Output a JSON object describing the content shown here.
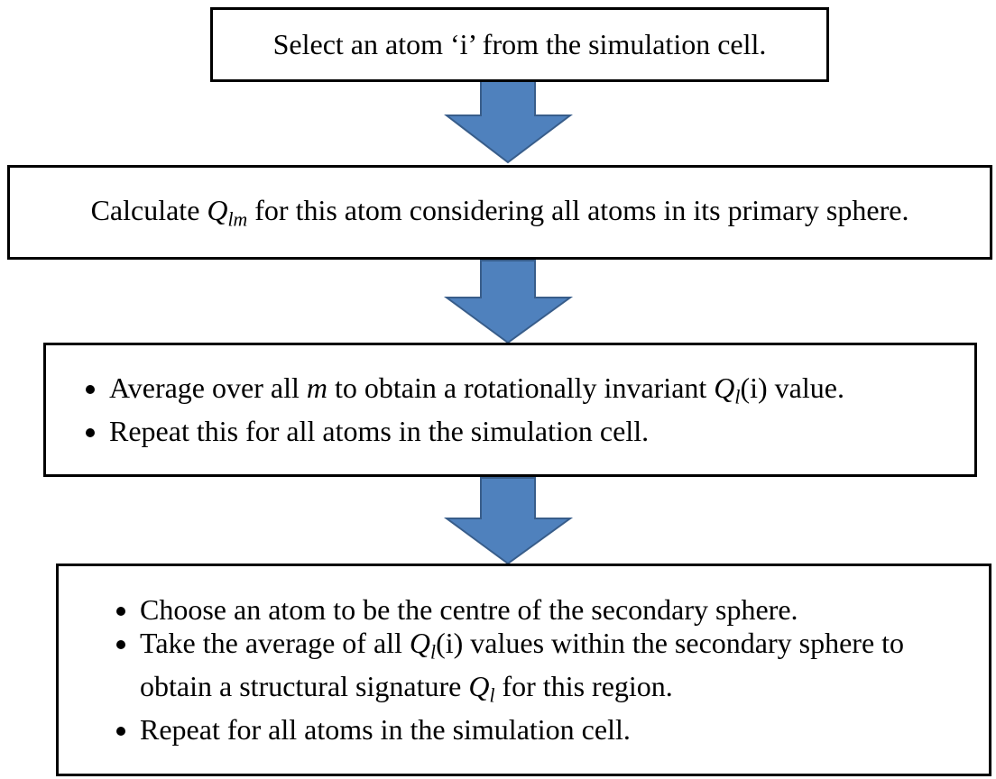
{
  "nodes": [
    {
      "bulleted": false,
      "items": [
        [
          {
            "text": "Select an atom ‘i’ from the simulation cell."
          }
        ]
      ]
    },
    {
      "bulleted": false,
      "items": [
        [
          {
            "text": "Calculate "
          },
          {
            "text": "Q",
            "style": "italic"
          },
          {
            "text": "lm",
            "style": "italic-sub"
          },
          {
            "text": " for this atom considering all atoms in its primary sphere."
          }
        ]
      ]
    },
    {
      "bulleted": true,
      "items": [
        [
          {
            "text": "Average over all "
          },
          {
            "text": "m",
            "style": "italic"
          },
          {
            "text": " to obtain a rotationally invariant "
          },
          {
            "text": "Q",
            "style": "italic"
          },
          {
            "text": "l",
            "style": "italic-sub"
          },
          {
            "text": "(i) value."
          }
        ],
        [
          {
            "text": "Repeat this for all atoms in the simulation cell."
          }
        ]
      ]
    },
    {
      "bulleted": true,
      "items": [
        [
          {
            "text": "Choose an atom to be the centre of the secondary sphere."
          }
        ],
        [
          {
            "text": "Take the average of all "
          },
          {
            "text": "Q",
            "style": "italic"
          },
          {
            "text": "l",
            "style": "italic-sub"
          },
          {
            "text": "(i) values within the secondary sphere to obtain a structural signature "
          },
          {
            "text": "Q",
            "style": "italic"
          },
          {
            "text": "l",
            "style": "italic-sub"
          },
          {
            "text": " for this region."
          }
        ],
        [
          {
            "text": "Repeat for all atoms in the simulation cell."
          }
        ]
      ]
    }
  ]
}
